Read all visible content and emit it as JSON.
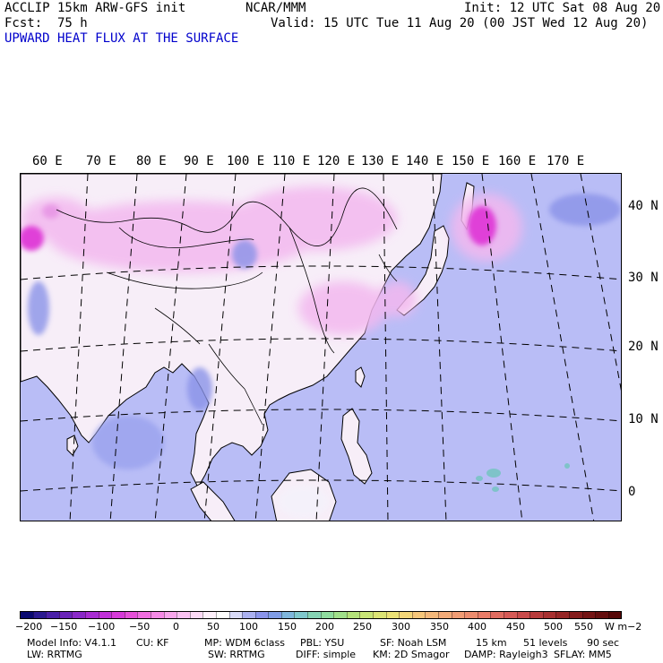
{
  "header": {
    "model": "ACCLIP 15km ARW-GFS init",
    "org": "NCAR/MMM",
    "init": "Init: 12 UTC Sat 08 Aug 20",
    "fcst_label": "Fcst:",
    "fcst_value": "75 h",
    "valid": "Valid: 15 UTC Tue 11 Aug 20 (00 JST Wed 12 Aug 20)",
    "field": "UPWARD HEAT FLUX AT THE SURFACE"
  },
  "map": {
    "lon_labels": [
      "60 E",
      "70 E",
      "80 E",
      "90 E",
      "100 E",
      "110 E",
      "120 E",
      "130 E",
      "140 E",
      "150 E",
      "160 E",
      "170 E"
    ],
    "lat_labels": [
      "40 N",
      "30 N",
      "20 N",
      "10 N",
      "0"
    ],
    "colors": {
      "ocean": "#b9bdf6",
      "land": "#f7eef8",
      "pink": "#f3b8ef",
      "magenta": "#e040d8",
      "blue": "#8a93e8",
      "teal": "#7fc3c9"
    }
  },
  "colorbar": {
    "labels": [
      "−200",
      "−150",
      "−100",
      "−50",
      "0",
      "50",
      "100",
      "150",
      "200",
      "250",
      "300",
      "350",
      "400",
      "450",
      "500",
      "550"
    ],
    "units": "W m−2",
    "colors": [
      "#0a0a70",
      "#2a1a90",
      "#4a20a8",
      "#6a24b8",
      "#8a28c8",
      "#a82cd2",
      "#c030d8",
      "#d63ad8",
      "#e650d8",
      "#f06ee0",
      "#f58ae6",
      "#f8a6ec",
      "#fac2f2",
      "#fcdaf6",
      "#fef0fb",
      "#ffffff",
      "#d8daf8",
      "#aab0f0",
      "#8a94ea",
      "#7f9ce6",
      "#7fb6dc",
      "#80c8cc",
      "#86d4b4",
      "#8fdc9e",
      "#a0e08a",
      "#b4e27a",
      "#c8e476",
      "#dce474",
      "#ece276",
      "#f4d678",
      "#f6c67a",
      "#f4b87a",
      "#f2aa78",
      "#f09c74",
      "#ec8c6e",
      "#e87c68",
      "#e06c60",
      "#d65a56",
      "#c84a4a",
      "#b83c3c",
      "#a83030",
      "#962626",
      "#841c1c",
      "#741414",
      "#640e0e",
      "#560808"
    ]
  },
  "model_info": {
    "line1": [
      "Model Info: V4.1.1",
      "CU: KF",
      "MP: WDM 6class",
      "PBL: YSU",
      "SF: Noah LSM",
      "15 km",
      "51 levels",
      "90 sec"
    ],
    "line2": [
      "LW: RRTMG",
      "SW: RRTMG",
      "DIFF: simple",
      "KM: 2D Smagor",
      "DAMP: Rayleigh3",
      "SFLAY: MM5"
    ]
  }
}
